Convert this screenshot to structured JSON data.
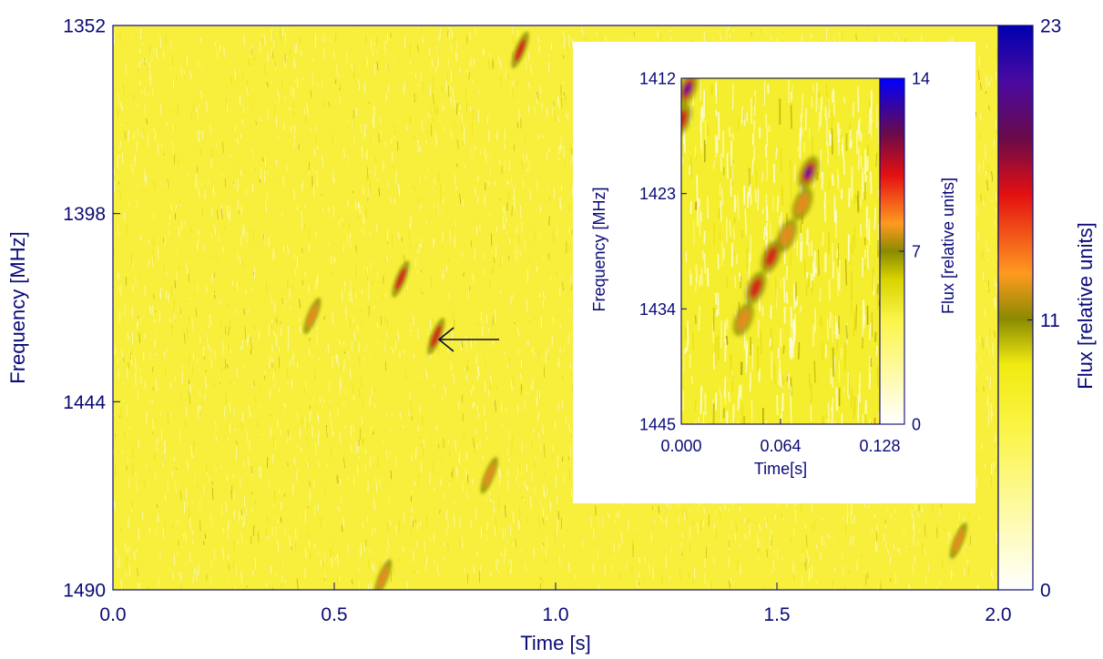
{
  "chart_data": [
    {
      "type": "heatmap",
      "xlabel": "Time [s]",
      "ylabel": "Frequency [MHz]",
      "xlim": [
        0.0,
        2.0
      ],
      "ylim": [
        1352,
        1490
      ],
      "y_inverted": true,
      "x_ticks": [
        "0.0",
        "0.5",
        "1.0",
        "1.5",
        "2.0"
      ],
      "y_ticks": [
        "1352",
        "1398",
        "1444",
        "1490"
      ],
      "colorbar": {
        "label": "Flux [relative units]",
        "range": [
          0,
          23
        ],
        "ticks": [
          "0",
          "11",
          "23"
        ]
      },
      "annotation": "arrow",
      "features": [
        {
          "x": 0.45,
          "y": 1423,
          "strength": 0.7
        },
        {
          "x": 0.65,
          "y": 1414,
          "strength": 0.9
        },
        {
          "x": 0.92,
          "y": 1358,
          "strength": 0.85
        },
        {
          "x": 0.73,
          "y": 1428,
          "strength": 0.8
        },
        {
          "x": 0.85,
          "y": 1462,
          "strength": 0.6
        },
        {
          "x": 0.61,
          "y": 1487,
          "strength": 0.5
        },
        {
          "x": 1.91,
          "y": 1478,
          "strength": 0.4
        }
      ]
    },
    {
      "type": "heatmap",
      "inset": true,
      "xlabel": "Time[s]",
      "ylabel": "Frequency [MHz]",
      "xlim": [
        0.0,
        0.128
      ],
      "ylim": [
        1412,
        1445
      ],
      "y_inverted": true,
      "x_ticks": [
        "0.000",
        "0.064",
        "0.128"
      ],
      "y_ticks": [
        "1412",
        "1423",
        "1434",
        "1445"
      ],
      "colorbar": {
        "label": "Flux [relative units]",
        "range": [
          0,
          14
        ],
        "ticks": [
          "0",
          "7",
          "14"
        ]
      },
      "features": [
        {
          "x": 0.004,
          "y": 1413,
          "strength": 1.0
        },
        {
          "x": 0.0,
          "y": 1416,
          "strength": 0.85
        },
        {
          "x": 0.082,
          "y": 1421,
          "strength": 1.0
        },
        {
          "x": 0.078,
          "y": 1424,
          "strength": 0.7
        },
        {
          "x": 0.068,
          "y": 1427,
          "strength": 0.75
        },
        {
          "x": 0.058,
          "y": 1429,
          "strength": 0.85
        },
        {
          "x": 0.048,
          "y": 1432,
          "strength": 0.9
        },
        {
          "x": 0.04,
          "y": 1435,
          "strength": 0.6
        }
      ]
    }
  ],
  "colors": {
    "axis": "#0a0a78",
    "background_field": "#f7ef3c",
    "colorbar_stops": [
      "#ffffff",
      "#f7f300",
      "#8a8a00",
      "#ff9a20",
      "#e41010",
      "#6a0a5a",
      "#0a0aa0",
      "#0000ff"
    ]
  }
}
